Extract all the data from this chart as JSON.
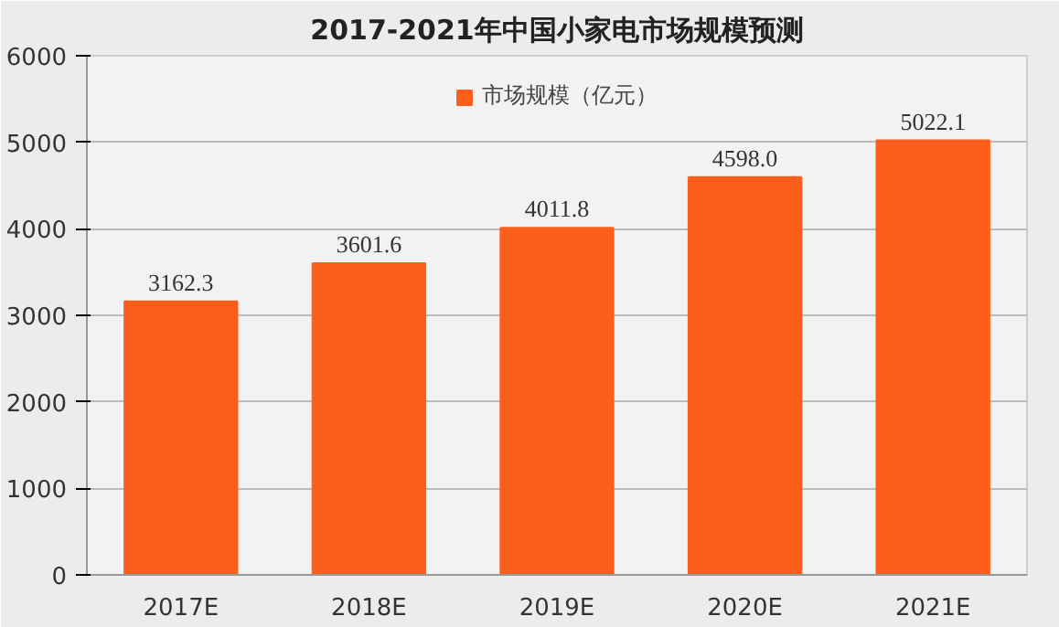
{
  "chart_data": {
    "type": "bar",
    "title": "2017-2021年中国小家电市场规模预测",
    "categories": [
      "2017E",
      "2018E",
      "2019E",
      "2020E",
      "2021E"
    ],
    "series": [
      {
        "name": "市场规模（亿元）",
        "color": "#fc5f1c",
        "values": [
          3162.3,
          3601.6,
          4011.8,
          4598,
          5022.1
        ],
        "value_labels": [
          "3162.3",
          "3601.6",
          "4011.8",
          "4598.0",
          "5022.1"
        ]
      }
    ],
    "ylim": [
      0,
      6000
    ],
    "yticks": [
      0,
      1000,
      2000,
      3000,
      4000,
      5000,
      6000
    ],
    "grid": "y",
    "legend": "top"
  }
}
